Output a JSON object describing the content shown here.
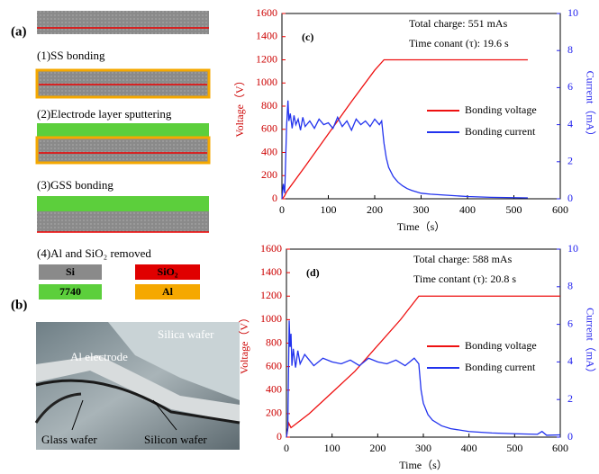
{
  "chart_data": [
    {
      "type": "line",
      "panel": "(c)",
      "annotations": [
        "Total charge: 551 mAs",
        "Time conant (τ): 19.6 s"
      ],
      "x_label": "Time（s）",
      "y_label": "Voltage（V）",
      "y2_label": "Current（mA）",
      "xlim": [
        0,
        600
      ],
      "xticks": [
        0,
        100,
        200,
        300,
        400,
        500,
        600
      ],
      "ylim": [
        0,
        1600
      ],
      "yticks": [
        0,
        200,
        400,
        600,
        800,
        1000,
        1200,
        1400,
        1600
      ],
      "y2lim": [
        0,
        10
      ],
      "y2ticks": [
        0,
        2,
        4,
        6,
        8,
        10
      ],
      "legend": "right",
      "series": [
        {
          "name": "Bonding voltage",
          "color": "#ee1111",
          "x": [
            0,
            5,
            10,
            50,
            100,
            150,
            200,
            220,
            300,
            400,
            530
          ],
          "values": [
            0,
            20,
            60,
            280,
            560,
            840,
            1110,
            1200,
            1200,
            1200,
            1200
          ]
        },
        {
          "name": "Bonding current",
          "color": "#2233ee",
          "axis": "y2",
          "x": [
            0,
            3,
            6,
            10,
            13,
            15,
            18,
            22,
            26,
            30,
            35,
            40,
            45,
            50,
            60,
            70,
            80,
            90,
            100,
            110,
            120,
            130,
            140,
            150,
            160,
            170,
            180,
            190,
            200,
            210,
            215,
            220,
            225,
            230,
            240,
            250,
            260,
            270,
            280,
            300,
            320,
            350,
            400,
            450,
            500,
            530
          ],
          "values": [
            0,
            0.8,
            0.3,
            3.9,
            5.3,
            4.2,
            4.6,
            3.8,
            4.5,
            4.0,
            4.3,
            3.7,
            4.4,
            3.9,
            4.2,
            3.8,
            4.3,
            4.0,
            4.1,
            3.8,
            4.4,
            3.9,
            4.2,
            3.7,
            4.3,
            4.0,
            4.2,
            3.9,
            4.3,
            4.0,
            4.2,
            3.0,
            2.2,
            1.7,
            1.2,
            0.9,
            0.7,
            0.55,
            0.45,
            0.3,
            0.25,
            0.2,
            0.12,
            0.08,
            0.06,
            0.05
          ]
        }
      ]
    },
    {
      "type": "line",
      "panel": "(d)",
      "annotations": [
        "Total charge: 588 mAs",
        "Time contant (τ): 20.8 s"
      ],
      "x_label": "Time（s）",
      "y_label": "Voltage（V）",
      "y2_label": "Current（mA）",
      "xlim": [
        0,
        600
      ],
      "xticks": [
        0,
        100,
        200,
        300,
        400,
        500,
        600
      ],
      "ylim": [
        0,
        1600
      ],
      "yticks": [
        0,
        200,
        400,
        600,
        800,
        1000,
        1200,
        1400,
        1600
      ],
      "y2lim": [
        0,
        10
      ],
      "y2ticks": [
        0,
        2,
        4,
        6,
        8,
        10
      ],
      "legend": "right",
      "series": [
        {
          "name": "Bonding voltage",
          "color": "#ee1111",
          "x": [
            0,
            5,
            10,
            20,
            50,
            100,
            150,
            200,
            250,
            290,
            400,
            500,
            600
          ],
          "values": [
            0,
            120,
            80,
            110,
            200,
            380,
            560,
            780,
            1000,
            1200,
            1200,
            1200,
            1200
          ]
        },
        {
          "name": "Bonding current",
          "color": "#2233ee",
          "axis": "y2",
          "x": [
            0,
            3,
            6,
            8,
            10,
            12,
            15,
            20,
            25,
            30,
            40,
            50,
            60,
            80,
            100,
            120,
            140,
            160,
            180,
            200,
            220,
            240,
            260,
            280,
            290,
            295,
            300,
            310,
            320,
            340,
            360,
            400,
            450,
            500,
            550,
            560,
            570,
            600
          ],
          "values": [
            0,
            0.5,
            6.2,
            4.8,
            5.5,
            3.8,
            4.7,
            3.7,
            4.6,
            3.9,
            4.4,
            4.1,
            3.8,
            4.2,
            4.0,
            3.9,
            4.1,
            3.8,
            4.2,
            4.0,
            3.9,
            4.1,
            3.8,
            4.2,
            3.9,
            2.5,
            1.8,
            1.2,
            0.9,
            0.6,
            0.45,
            0.3,
            0.22,
            0.18,
            0.15,
            0.3,
            0.1,
            0.12
          ]
        }
      ]
    }
  ],
  "panel_a": {
    "label": "(a)",
    "steps": [
      "(1)SS bonding",
      "(2)Electrode layer sputtering",
      "(3)GSS bonding",
      "(4)Al and SiO₂ removed"
    ],
    "legend": [
      "Si",
      "SiO₂",
      "7740",
      "Al"
    ]
  },
  "panel_b": {
    "label": "(b)",
    "labels": [
      "Silica wafer",
      "Al electrode",
      "Glass wafer",
      "Silicon wafer"
    ]
  }
}
